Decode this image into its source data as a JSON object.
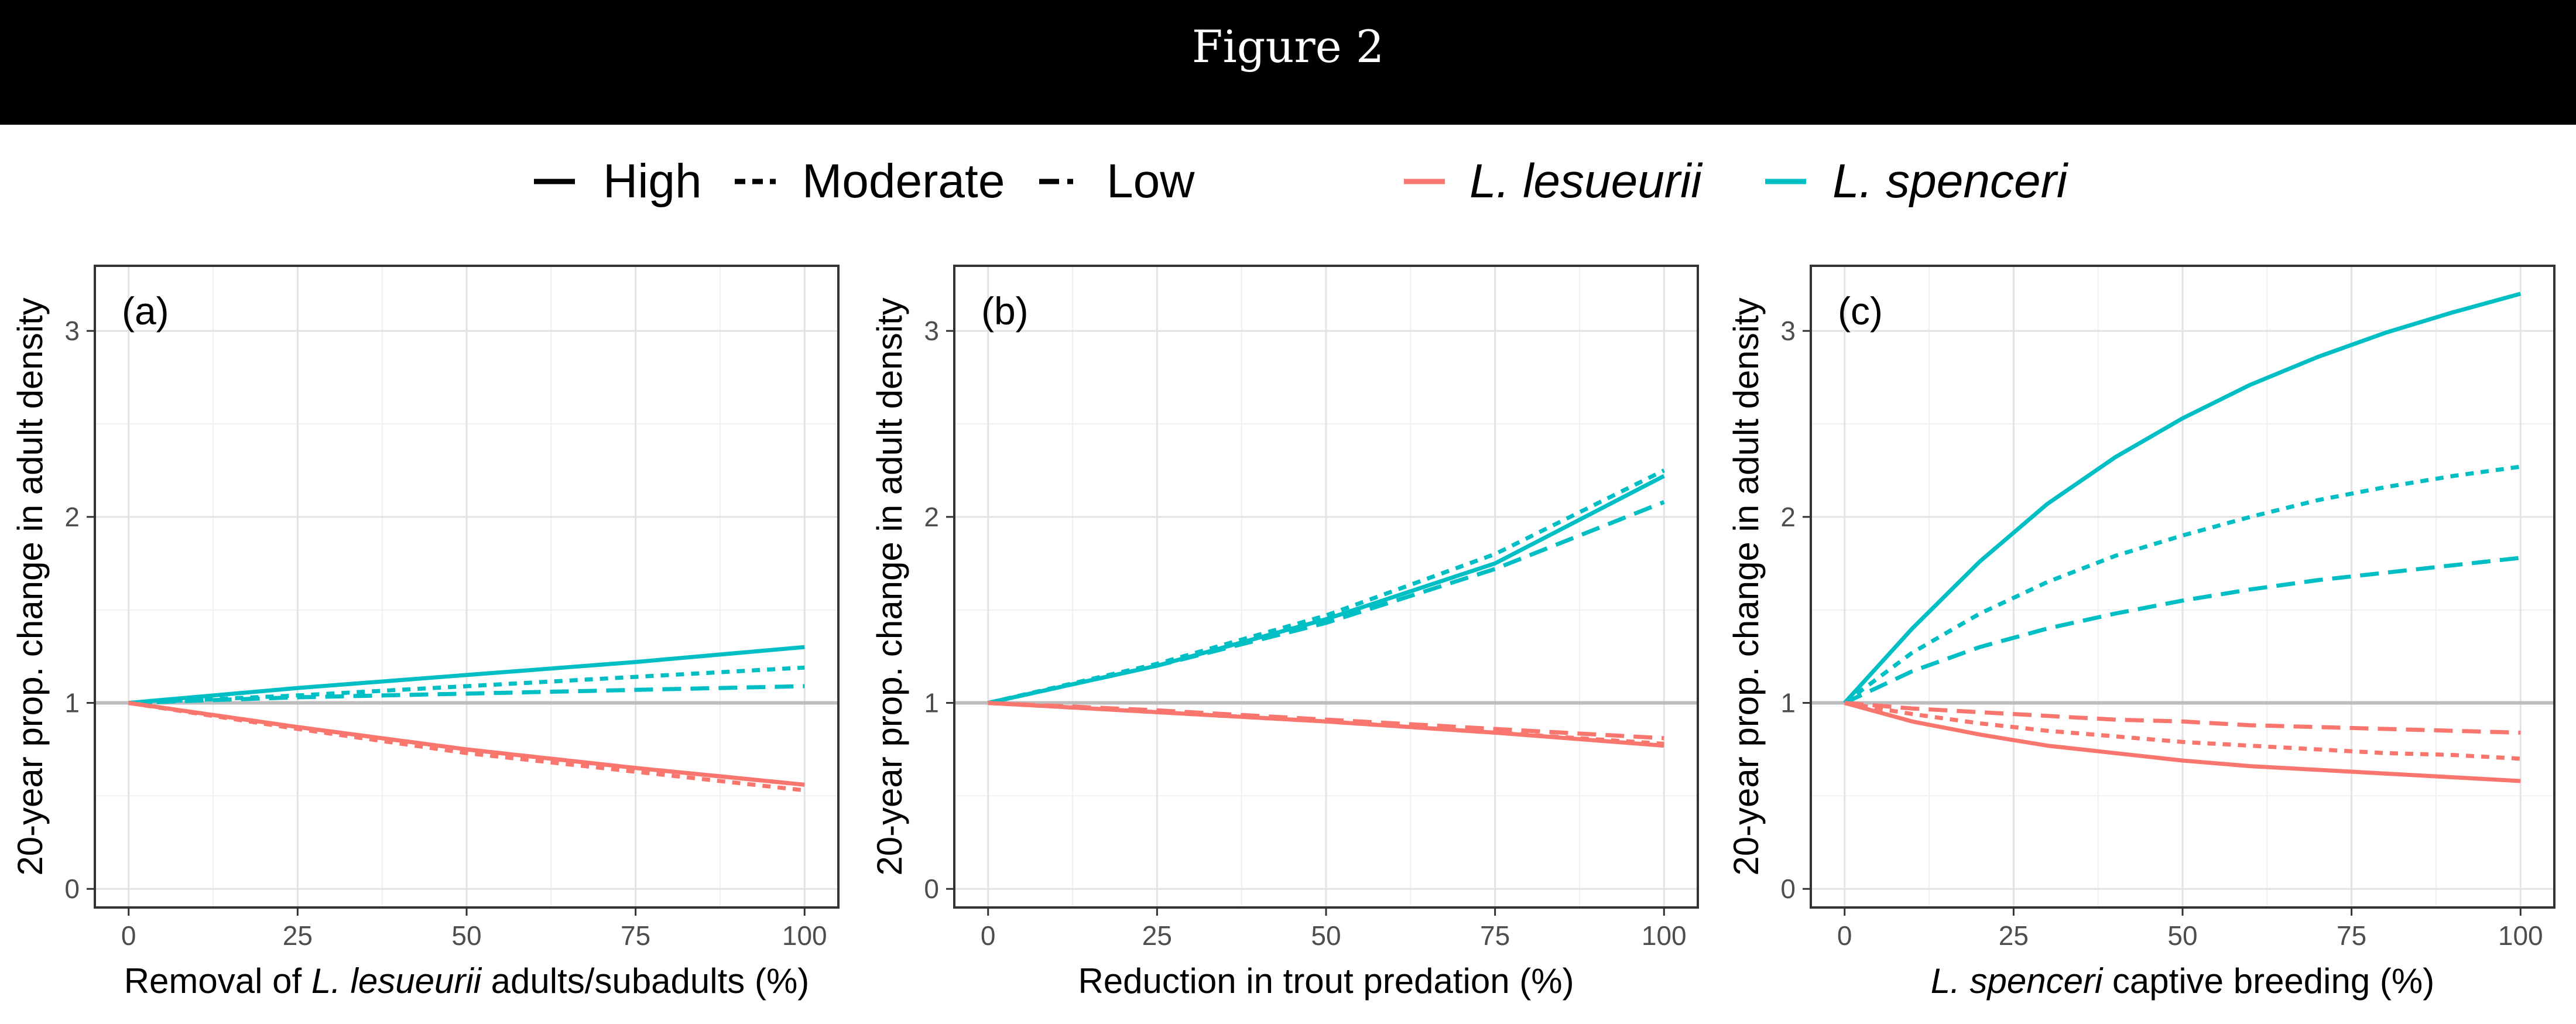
{
  "figure": {
    "title": "Figure 2"
  },
  "legend": {
    "linetypes": [
      {
        "label": "High",
        "dash": "solid"
      },
      {
        "label": "Moderate",
        "dash": "dotted"
      },
      {
        "label": "Low",
        "dash": "dashed"
      }
    ],
    "species": [
      {
        "label": "L. lesueurii",
        "color": "#F8766D"
      },
      {
        "label": "L. spenceri",
        "color": "#00BFC4"
      }
    ]
  },
  "colors": {
    "lesueurii": "#F8766D",
    "spenceri": "#00BFC4",
    "reference_line": "#bdbdbd"
  },
  "chart_data": [
    {
      "type": "line",
      "tag": "(a)",
      "ylabel": "20-year prop. change in adult density",
      "xlabel_parts": [
        {
          "text": "Removal of ",
          "italic": false
        },
        {
          "text": "L. lesueurii",
          "italic": true
        },
        {
          "text": " adults/subadults (%)",
          "italic": false
        }
      ],
      "xlim": [
        -5,
        105
      ],
      "ylim": [
        -0.1,
        3.35
      ],
      "xticks": [
        0,
        25,
        50,
        75,
        100
      ],
      "yticks": [
        0,
        1,
        2,
        3
      ],
      "grid": true,
      "hline": 1,
      "x": [
        0,
        25,
        50,
        75,
        100
      ],
      "series": [
        {
          "name": "L. spenceri",
          "scenario": "High",
          "values": [
            1.0,
            1.08,
            1.15,
            1.22,
            1.3
          ]
        },
        {
          "name": "L. spenceri",
          "scenario": "Moderate",
          "values": [
            1.0,
            1.04,
            1.09,
            1.14,
            1.19
          ]
        },
        {
          "name": "L. spenceri",
          "scenario": "Low",
          "values": [
            1.0,
            1.03,
            1.05,
            1.07,
            1.09
          ]
        },
        {
          "name": "L. lesueurii",
          "scenario": "High",
          "values": [
            1.0,
            0.87,
            0.75,
            0.65,
            0.56
          ]
        },
        {
          "name": "L. lesueurii",
          "scenario": "Moderate",
          "values": [
            1.0,
            0.86,
            0.73,
            0.63,
            0.53
          ]
        },
        {
          "name": "L. lesueurii",
          "scenario": "Low",
          "values": [
            1.0,
            0.87,
            0.75,
            0.65,
            0.56
          ]
        }
      ]
    },
    {
      "type": "line",
      "tag": "(b)",
      "ylabel": "20-year prop. change in adult density",
      "xlabel_parts": [
        {
          "text": "Reduction in trout predation (%)",
          "italic": false
        }
      ],
      "xlim": [
        -5,
        105
      ],
      "ylim": [
        -0.1,
        3.35
      ],
      "xticks": [
        0,
        25,
        50,
        75,
        100
      ],
      "yticks": [
        0,
        1,
        2,
        3
      ],
      "grid": true,
      "hline": 1,
      "x": [
        0,
        25,
        50,
        75,
        100
      ],
      "series": [
        {
          "name": "L. spenceri",
          "scenario": "High",
          "values": [
            1.0,
            1.2,
            1.45,
            1.75,
            2.22
          ]
        },
        {
          "name": "L. spenceri",
          "scenario": "Moderate",
          "values": [
            1.0,
            1.21,
            1.47,
            1.8,
            2.25
          ]
        },
        {
          "name": "L. spenceri",
          "scenario": "Low",
          "values": [
            1.0,
            1.2,
            1.43,
            1.72,
            2.08
          ]
        },
        {
          "name": "L. lesueurii",
          "scenario": "High",
          "values": [
            1.0,
            0.95,
            0.9,
            0.84,
            0.77
          ]
        },
        {
          "name": "L. lesueurii",
          "scenario": "Moderate",
          "values": [
            1.0,
            0.95,
            0.9,
            0.84,
            0.78
          ]
        },
        {
          "name": "L. lesueurii",
          "scenario": "Low",
          "values": [
            1.0,
            0.96,
            0.91,
            0.86,
            0.81
          ]
        }
      ]
    },
    {
      "type": "line",
      "tag": "(c)",
      "ylabel": "20-year prop. change in adult density",
      "xlabel_parts": [
        {
          "text": "L. spenceri",
          "italic": true
        },
        {
          "text": " captive breeding (%)",
          "italic": false
        }
      ],
      "xlim": [
        -5,
        105
      ],
      "ylim": [
        -0.1,
        3.35
      ],
      "xticks": [
        0,
        25,
        50,
        75,
        100
      ],
      "yticks": [
        0,
        1,
        2,
        3
      ],
      "grid": true,
      "hline": 1,
      "x": [
        0,
        10,
        20,
        30,
        40,
        50,
        60,
        70,
        80,
        90,
        100
      ],
      "series": [
        {
          "name": "L. spenceri",
          "scenario": "High",
          "values": [
            1.0,
            1.4,
            1.76,
            2.07,
            2.32,
            2.53,
            2.71,
            2.86,
            2.99,
            3.1,
            3.2
          ]
        },
        {
          "name": "L. spenceri",
          "scenario": "Moderate",
          "values": [
            1.0,
            1.27,
            1.48,
            1.65,
            1.79,
            1.9,
            2.0,
            2.09,
            2.16,
            2.22,
            2.27
          ]
        },
        {
          "name": "L. spenceri",
          "scenario": "Low",
          "values": [
            1.0,
            1.17,
            1.3,
            1.4,
            1.48,
            1.55,
            1.61,
            1.66,
            1.7,
            1.74,
            1.78
          ]
        },
        {
          "name": "L. lesueurii",
          "scenario": "High",
          "values": [
            1.0,
            0.9,
            0.83,
            0.77,
            0.73,
            0.69,
            0.66,
            0.64,
            0.62,
            0.6,
            0.58
          ]
        },
        {
          "name": "L. lesueurii",
          "scenario": "Moderate",
          "values": [
            1.0,
            0.94,
            0.89,
            0.85,
            0.82,
            0.79,
            0.77,
            0.75,
            0.73,
            0.72,
            0.7
          ]
        },
        {
          "name": "L. lesueurii",
          "scenario": "Low",
          "values": [
            1.0,
            0.97,
            0.95,
            0.93,
            0.91,
            0.9,
            0.88,
            0.87,
            0.86,
            0.85,
            0.84
          ]
        }
      ]
    }
  ]
}
